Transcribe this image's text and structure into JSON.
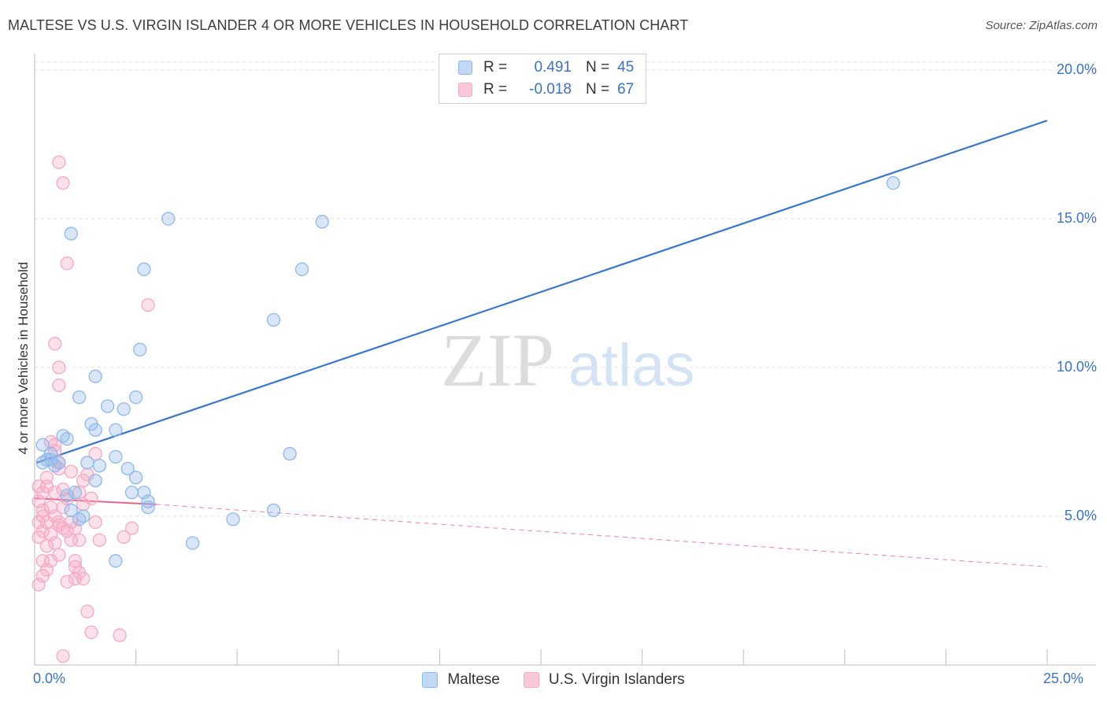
{
  "title": "MALTESE VS U.S. VIRGIN ISLANDER 4 OR MORE VEHICLES IN HOUSEHOLD CORRELATION CHART",
  "source": "Source: ZipAtlas.com",
  "watermark": {
    "zip": "ZIP",
    "atlas": "atlas"
  },
  "legend": {
    "r_label": "R =",
    "n_label": "N =",
    "rows": [
      {
        "r": "0.491",
        "n": "45"
      },
      {
        "r": "-0.018",
        "n": "67"
      }
    ]
  },
  "chart_data": {
    "type": "scatter",
    "title": "MALTESE VS U.S. VIRGIN ISLANDER 4 OR MORE VEHICLES IN HOUSEHOLD CORRELATION CHART",
    "xlabel": "",
    "ylabel": "4 or more Vehicles in Household",
    "xlim": [
      0,
      25
    ],
    "ylim": [
      0,
      20.5
    ],
    "x_tick_labels": [
      "0.0%",
      "25.0%"
    ],
    "y_ticks": [
      5,
      10,
      15,
      20
    ],
    "y_tick_labels": [
      "5.0%",
      "10.0%",
      "15.0%",
      "20.0%"
    ],
    "grid": true,
    "series": [
      {
        "name": "Maltese",
        "color": "#8fb8ea",
        "line_color": "#3a76cc",
        "r": 0.491,
        "n": 45,
        "trend": {
          "x0": 0.05,
          "y0": 6.8,
          "x1": 25,
          "y1": 18.3
        },
        "points": [
          [
            0.2,
            7.4
          ],
          [
            0.3,
            6.9
          ],
          [
            0.4,
            7.1
          ],
          [
            0.5,
            6.7
          ],
          [
            0.7,
            7.7
          ],
          [
            0.2,
            6.8
          ],
          [
            1.0,
            5.8
          ],
          [
            0.8,
            5.7
          ],
          [
            0.9,
            5.2
          ],
          [
            1.1,
            4.9
          ],
          [
            1.3,
            6.8
          ],
          [
            1.5,
            6.2
          ],
          [
            1.6,
            6.7
          ],
          [
            1.4,
            8.1
          ],
          [
            1.5,
            7.9
          ],
          [
            1.8,
            8.7
          ],
          [
            2.0,
            7.9
          ],
          [
            2.2,
            8.6
          ],
          [
            1.1,
            9.0
          ],
          [
            1.5,
            9.7
          ],
          [
            2.0,
            7.0
          ],
          [
            2.3,
            6.6
          ],
          [
            2.5,
            6.3
          ],
          [
            2.4,
            5.8
          ],
          [
            2.7,
            5.8
          ],
          [
            2.8,
            5.5
          ],
          [
            2.8,
            5.3
          ],
          [
            2.5,
            9.0
          ],
          [
            2.6,
            10.6
          ],
          [
            2.7,
            13.3
          ],
          [
            3.3,
            15.0
          ],
          [
            0.9,
            14.5
          ],
          [
            2.0,
            3.5
          ],
          [
            3.9,
            4.1
          ],
          [
            4.9,
            4.9
          ],
          [
            5.9,
            11.6
          ],
          [
            5.9,
            5.2
          ],
          [
            6.3,
            7.1
          ],
          [
            6.6,
            13.3
          ],
          [
            7.1,
            14.9
          ],
          [
            21.2,
            16.2
          ],
          [
            0.6,
            6.8
          ],
          [
            1.2,
            5.0
          ],
          [
            0.4,
            6.9
          ],
          [
            0.8,
            7.6
          ]
        ]
      },
      {
        "name": "U.S. Virgin Islanders",
        "color": "#f5a9c2",
        "line_color": "#e8648e",
        "r": -0.018,
        "n": 67,
        "trend_solid": {
          "x0": 0.0,
          "y0": 5.6,
          "x1": 3.0,
          "y1": 5.4
        },
        "trend_dashed": {
          "x0": 3.0,
          "y0": 5.4,
          "x1": 25,
          "y1": 3.3
        },
        "points": [
          [
            0.1,
            6.0
          ],
          [
            0.2,
            5.8
          ],
          [
            0.1,
            5.5
          ],
          [
            0.3,
            6.3
          ],
          [
            0.2,
            5.0
          ],
          [
            0.1,
            4.8
          ],
          [
            0.2,
            4.5
          ],
          [
            0.1,
            4.3
          ],
          [
            0.3,
            4.0
          ],
          [
            0.2,
            3.5
          ],
          [
            0.3,
            3.2
          ],
          [
            0.1,
            2.7
          ],
          [
            0.2,
            3.0
          ],
          [
            0.4,
            7.5
          ],
          [
            0.5,
            7.2
          ],
          [
            0.6,
            6.8
          ],
          [
            0.5,
            5.8
          ],
          [
            0.4,
            5.3
          ],
          [
            0.5,
            5.0
          ],
          [
            0.6,
            4.7
          ],
          [
            0.4,
            4.4
          ],
          [
            0.5,
            4.1
          ],
          [
            0.6,
            3.7
          ],
          [
            0.7,
            5.9
          ],
          [
            0.8,
            5.6
          ],
          [
            0.7,
            5.3
          ],
          [
            0.6,
            4.8
          ],
          [
            0.8,
            4.5
          ],
          [
            0.9,
            4.8
          ],
          [
            0.7,
            4.6
          ],
          [
            0.8,
            2.8
          ],
          [
            1.0,
            3.5
          ],
          [
            1.0,
            3.3
          ],
          [
            1.1,
            3.1
          ],
          [
            1.0,
            2.9
          ],
          [
            0.9,
            4.2
          ],
          [
            1.1,
            4.2
          ],
          [
            1.2,
            6.2
          ],
          [
            1.2,
            5.4
          ],
          [
            1.3,
            6.4
          ],
          [
            1.5,
            7.1
          ],
          [
            1.4,
            5.6
          ],
          [
            1.5,
            4.8
          ],
          [
            1.6,
            4.2
          ],
          [
            1.2,
            2.9
          ],
          [
            0.6,
            16.9
          ],
          [
            0.7,
            16.2
          ],
          [
            0.8,
            13.5
          ],
          [
            0.5,
            10.8
          ],
          [
            0.6,
            10.0
          ],
          [
            0.6,
            9.4
          ],
          [
            2.8,
            12.1
          ],
          [
            2.2,
            4.3
          ],
          [
            2.4,
            4.6
          ],
          [
            1.3,
            1.8
          ],
          [
            1.4,
            1.1
          ],
          [
            2.1,
            1.0
          ],
          [
            0.7,
            0.3
          ],
          [
            0.2,
            5.2
          ],
          [
            0.3,
            6.0
          ],
          [
            0.6,
            6.6
          ],
          [
            1.0,
            4.6
          ],
          [
            1.1,
            5.8
          ],
          [
            0.4,
            3.5
          ],
          [
            0.9,
            6.5
          ],
          [
            0.5,
            7.4
          ],
          [
            0.3,
            4.8
          ]
        ]
      }
    ]
  }
}
